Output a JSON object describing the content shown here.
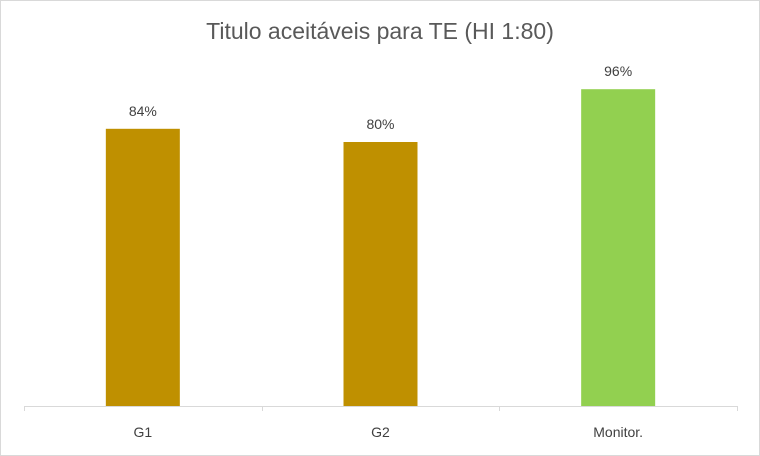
{
  "chart_data": {
    "type": "bar",
    "title": "Titulo aceitáveis para TE (HI 1:80)",
    "categories": [
      "G1",
      "G2",
      "Monitor."
    ],
    "values": [
      84,
      80,
      96
    ],
    "value_labels": [
      "84%",
      "80%",
      "96%"
    ],
    "unit": "%",
    "ylim": [
      0,
      100
    ],
    "grid": false,
    "legend": "none",
    "colors": [
      "#bf9000",
      "#bf9000",
      "#92d050"
    ],
    "axis_color": "#d9d9d9"
  }
}
